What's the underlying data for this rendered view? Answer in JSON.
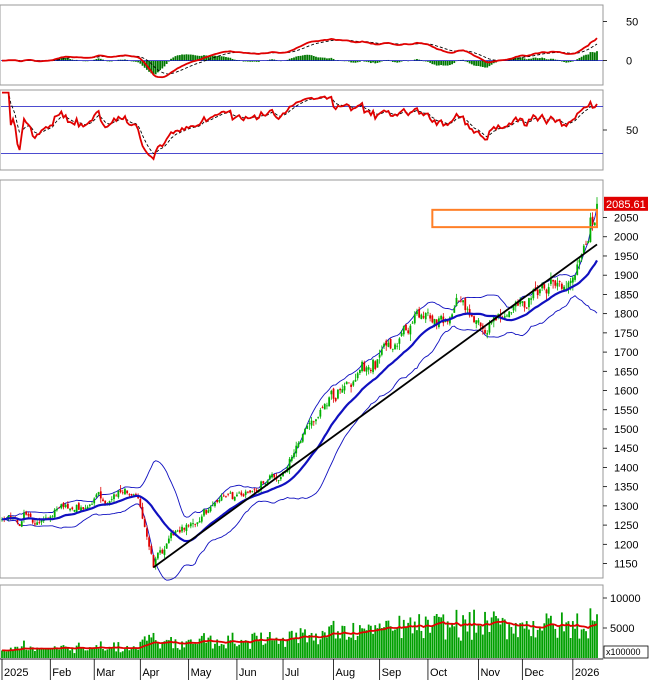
{
  "chart_data": {
    "type": "candlestick",
    "colors": {
      "up": "#00b000",
      "down": "#e00000",
      "sma": "#1010c0",
      "band": "#1010c0",
      "trend": "#000000",
      "box": "#ff7f27",
      "macd": "#e00000",
      "hist": "#007700",
      "volume": "#00a000",
      "volume_ma": "#e00000",
      "price_tag_bg": "#e00000"
    },
    "months": [
      "2025",
      "Feb",
      "Mar",
      "Apr",
      "May",
      "Jun",
      "Jul",
      "Aug",
      "Sep",
      "Oct",
      "Nov",
      "Dec",
      "2026"
    ],
    "last_price_label": "2085.61",
    "price_panel": {
      "ylim": [
        1115,
        2145
      ],
      "ticks": [
        "2050",
        "2000",
        "1950",
        "1900",
        "1850",
        "1800",
        "1750",
        "1700",
        "1650",
        "1600",
        "1550",
        "1500",
        "1450",
        "1400",
        "1350",
        "1300",
        "1250",
        "1200",
        "1150"
      ],
      "anchors": [
        {
          "date": "2025-01-02",
          "close": 1265
        },
        {
          "date": "2025-01-15",
          "close": 1260
        },
        {
          "date": "2025-02-05",
          "close": 1290
        },
        {
          "date": "2025-02-28",
          "close": 1305
        },
        {
          "date": "2025-03-15",
          "close": 1330
        },
        {
          "date": "2025-03-31",
          "close": 1320
        },
        {
          "date": "2025-04-09",
          "close": 1140
        },
        {
          "date": "2025-04-18",
          "close": 1215
        },
        {
          "date": "2025-05-05",
          "close": 1255
        },
        {
          "date": "2025-05-20",
          "close": 1310
        },
        {
          "date": "2025-06-10",
          "close": 1335
        },
        {
          "date": "2025-06-30",
          "close": 1375
        },
        {
          "date": "2025-07-15",
          "close": 1500
        },
        {
          "date": "2025-07-28",
          "close": 1565
        },
        {
          "date": "2025-08-12",
          "close": 1620
        },
        {
          "date": "2025-08-27",
          "close": 1680
        },
        {
          "date": "2025-09-10",
          "close": 1720
        },
        {
          "date": "2025-09-25",
          "close": 1790
        },
        {
          "date": "2025-10-07",
          "close": 1770
        },
        {
          "date": "2025-10-23",
          "close": 1835
        },
        {
          "date": "2025-11-05",
          "close": 1760
        },
        {
          "date": "2025-11-20",
          "close": 1795
        },
        {
          "date": "2025-12-05",
          "close": 1840
        },
        {
          "date": "2025-12-18",
          "close": 1890
        },
        {
          "date": "2026-01-02",
          "close": 1900
        },
        {
          "date": "2026-01-13",
          "close": 2050
        },
        {
          "date": "2026-01-17",
          "close": 2085.61
        }
      ],
      "trend_line": [
        {
          "date": "2025-04-09",
          "price": 1140
        },
        {
          "date": "2026-01-17",
          "price": 1980
        }
      ],
      "resistance_box": {
        "x_start": "2025-10-03",
        "x_end": "2026-01-17",
        "low": 2025,
        "high": 2070
      }
    },
    "rsi_panel": {
      "ylim": [
        0,
        100
      ],
      "ticks": [
        "50"
      ],
      "levels": [
        80,
        20
      ]
    },
    "macd_panel": {
      "ylim": [
        -30,
        70
      ],
      "ticks": [
        "50",
        "0"
      ]
    },
    "volume_panel": {
      "ylim": [
        0,
        12000
      ],
      "ticks": [
        "10000",
        "5000"
      ],
      "unit": "x100000"
    }
  }
}
